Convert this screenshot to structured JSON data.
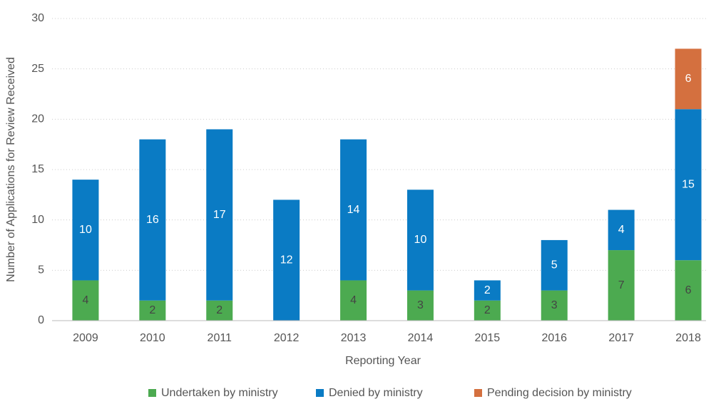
{
  "chart_data": {
    "type": "bar",
    "stacked": true,
    "x_label": "Reporting Year",
    "y_label": "Number of Applications for Review Received",
    "categories": [
      "2009",
      "2010",
      "2011",
      "2012",
      "2013",
      "2014",
      "2015",
      "2016",
      "2017",
      "2018"
    ],
    "series": [
      {
        "name": "Undertaken by ministry",
        "color": "#4caa50",
        "values": [
          4,
          2,
          2,
          null,
          4,
          3,
          2,
          3,
          7,
          6
        ]
      },
      {
        "name": "Denied by ministry",
        "color": "#0a7bc4",
        "values": [
          10,
          16,
          17,
          12,
          14,
          10,
          2,
          5,
          4,
          15
        ]
      },
      {
        "name": "Pending decision by ministry",
        "color": "#d4703f",
        "values": [
          null,
          null,
          null,
          null,
          null,
          null,
          null,
          null,
          null,
          6
        ]
      }
    ],
    "ylim": [
      0,
      30
    ],
    "yticks": [
      0,
      5,
      10,
      15,
      20,
      25,
      30
    ],
    "grid": true
  }
}
